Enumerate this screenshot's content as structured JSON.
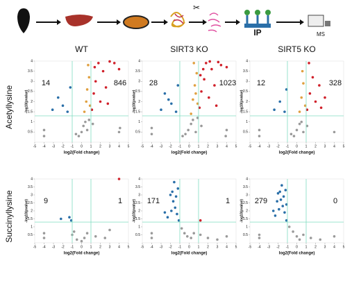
{
  "workflow": {
    "labels": [
      "IP",
      "MS"
    ]
  },
  "columns": [
    "WT",
    "SIRT3 KO",
    "SIRT5 KO"
  ],
  "rows": [
    "Acetyllysine",
    "Succinyllysine"
  ],
  "chart_data": [
    {
      "type": "scatter",
      "xlabel": "log2(Fold change)",
      "ylabel": "-log10(pvalue)",
      "xlim": [
        -5,
        5
      ],
      "xticks": [
        -5,
        -4,
        -3,
        -2,
        -1,
        0,
        1,
        2,
        3,
        4,
        5
      ],
      "ylim": [
        0,
        4
      ],
      "yticks": [
        0.5,
        1,
        1.5,
        2,
        2.5,
        3,
        3.5,
        4
      ],
      "thresholds": {
        "x": [
          -1,
          1
        ],
        "y": 1.3,
        "color": "#7fdcc0"
      },
      "annotations": [
        {
          "label": 14,
          "color": "#2e4fa0"
        },
        {
          "label": 846,
          "color": "#e0302a"
        }
      ],
      "series": [
        {
          "color": "#9a9a9a",
          "x": [
            -0.3,
            0,
            0.2,
            0.4,
            0.6,
            0.8,
            -0.6,
            1.2,
            -4,
            -4,
            4,
            4.1
          ],
          "y": [
            0.3,
            0.5,
            0.8,
            1.0,
            0.6,
            1.1,
            0.4,
            0.9,
            0.6,
            0.3,
            0.5,
            0.7
          ]
        },
        {
          "color": "#e0a040",
          "x": [
            0.3,
            0.5,
            0.6,
            0.8,
            0.9,
            0.7
          ],
          "y": [
            1.5,
            2.0,
            2.6,
            3.2,
            1.8,
            3.8
          ]
        },
        {
          "color": "#d0202a",
          "x": [
            1.1,
            1.3,
            1.5,
            1.8,
            2.0,
            2.3,
            2.6,
            3.0,
            3.5,
            4.0,
            1.4,
            2.8
          ],
          "y": [
            1.6,
            2.4,
            3.0,
            3.9,
            2.0,
            3.5,
            2.7,
            3.98,
            3.9,
            3.6,
            3.7,
            1.9
          ]
        },
        {
          "color": "#2a6fa8",
          "x": [
            -1.5,
            -2,
            -2.5,
            -1.2,
            -3.1
          ],
          "y": [
            1.5,
            1.8,
            2.2,
            2.7,
            1.6
          ]
        }
      ]
    },
    {
      "type": "scatter",
      "xlabel": "log2(Fold change)",
      "ylabel": "-log10(pvalue)",
      "xlim": [
        -5,
        5
      ],
      "xticks": [
        -5,
        -4,
        -3,
        -2,
        -1,
        0,
        1,
        2,
        3,
        4,
        5
      ],
      "ylim": [
        0,
        4
      ],
      "yticks": [
        0.5,
        1,
        1.5,
        2,
        2.5,
        3,
        3.5,
        4
      ],
      "thresholds": {
        "x": [
          -1,
          1
        ],
        "y": 1.3,
        "color": "#7fdcc0"
      },
      "annotations": [
        {
          "label": 28,
          "color": "#2e4fa0"
        },
        {
          "label": 1023,
          "color": "#e0302a"
        }
      ],
      "series": [
        {
          "color": "#9a9a9a",
          "x": [
            -0.4,
            -0.1,
            0.2,
            0.4,
            0.7,
            0.9,
            -0.7,
            1.3,
            -4,
            -4,
            4,
            3.9
          ],
          "y": [
            0.4,
            0.6,
            0.9,
            1.1,
            0.5,
            1.2,
            0.3,
            0.8,
            0.7,
            0.4,
            0.6,
            0.3
          ]
        },
        {
          "color": "#e0a040",
          "x": [
            0.2,
            0.4,
            0.6,
            0.8,
            0.9,
            0.5,
            0.7
          ],
          "y": [
            1.4,
            2.1,
            2.8,
            3.4,
            1.9,
            3.9,
            2.4
          ]
        },
        {
          "color": "#d0202a",
          "x": [
            1.1,
            1.3,
            1.6,
            1.8,
            2.1,
            2.4,
            2.7,
            3.1,
            3.4,
            4.0,
            1.5,
            2.9,
            2.2,
            1.2
          ],
          "y": [
            1.7,
            2.5,
            3.1,
            3.9,
            2.2,
            3.6,
            2.8,
            3.95,
            3.8,
            3.7,
            3.6,
            1.8,
            3.98,
            3.3
          ]
        },
        {
          "color": "#2a6fa8",
          "x": [
            -1.4,
            -1.9,
            -2.6,
            -1.2,
            -3.0,
            -2.2
          ],
          "y": [
            1.5,
            1.9,
            2.4,
            2.8,
            1.6,
            2.1
          ]
        }
      ]
    },
    {
      "type": "scatter",
      "xlabel": "log2(Fold change)",
      "ylabel": "-log10(pvalue)",
      "xlim": [
        -5,
        5
      ],
      "xticks": [
        -5,
        -4,
        -3,
        -2,
        -1,
        0,
        1,
        2,
        3,
        4,
        5
      ],
      "ylim": [
        0,
        4
      ],
      "yticks": [
        0.5,
        1,
        1.5,
        2,
        2.5,
        3,
        3.5,
        4
      ],
      "thresholds": {
        "x": [
          -1,
          1
        ],
        "y": 1.3,
        "color": "#7fdcc0"
      },
      "annotations": [
        {
          "label": 12,
          "color": "#2e4fa0"
        },
        {
          "label": 328,
          "color": "#e0302a"
        }
      ],
      "series": [
        {
          "color": "#9a9a9a",
          "x": [
            -0.3,
            0,
            0.3,
            0.5,
            0.7,
            -0.6,
            1.1,
            -4,
            -4,
            4
          ],
          "y": [
            0.3,
            0.6,
            0.9,
            1.0,
            0.5,
            0.4,
            0.8,
            0.6,
            0.3,
            0.5
          ]
        },
        {
          "color": "#e0a040",
          "x": [
            0.3,
            0.5,
            0.7,
            0.9,
            0.6
          ],
          "y": [
            1.5,
            2.2,
            2.9,
            1.8,
            3.5
          ]
        },
        {
          "color": "#d0202a",
          "x": [
            1.1,
            1.4,
            1.7,
            2.0,
            2.4,
            3.0,
            1.3,
            2.6
          ],
          "y": [
            1.6,
            2.4,
            3.2,
            2.0,
            2.8,
            2.2,
            3.9,
            1.7
          ]
        },
        {
          "color": "#2a6fa8",
          "x": [
            -1.3,
            -1.8,
            -1.1,
            -2.4
          ],
          "y": [
            1.5,
            2.0,
            2.6,
            1.6
          ]
        }
      ]
    },
    {
      "type": "scatter",
      "xlabel": "log2(Fold change)",
      "ylabel": "-log10(pvalue)",
      "xlim": [
        -5,
        5
      ],
      "xticks": [
        -5,
        -4,
        -3,
        -2,
        -1,
        0,
        1,
        2,
        3,
        4,
        5
      ],
      "ylim": [
        0,
        4
      ],
      "yticks": [
        0.5,
        1,
        1.5,
        2,
        2.5,
        3,
        3.5,
        4
      ],
      "thresholds": {
        "x": [
          -1,
          1
        ],
        "y": 1.3,
        "color": "#7fdcc0"
      },
      "annotations": [
        {
          "label": 9,
          "color": "#2e4fa0"
        },
        {
          "label": 1,
          "color": "#e0302a"
        }
      ],
      "series": [
        {
          "color": "#9a9a9a",
          "x": [
            -1,
            -0.5,
            0,
            0.3,
            0.6,
            -0.8,
            1.5,
            2.5,
            3,
            -4,
            -4
          ],
          "y": [
            0.5,
            0.2,
            0.1,
            0.3,
            0.6,
            0.7,
            0.4,
            0.3,
            0.8,
            0.6,
            0.3
          ]
        },
        {
          "color": "#2a6fa8",
          "x": [
            -1.3,
            -1.1,
            -2.2
          ],
          "y": [
            1.6,
            1.4,
            1.5
          ]
        },
        {
          "color": "#d0202a",
          "x": [
            4
          ],
          "y": [
            4
          ]
        }
      ]
    },
    {
      "type": "scatter",
      "xlabel": "log2(Fold change)",
      "ylabel": "-log10(pvalue)",
      "xlim": [
        -5,
        5
      ],
      "xticks": [
        -5,
        -4,
        -3,
        -2,
        -1,
        0,
        1,
        2,
        3,
        4,
        5
      ],
      "ylim": [
        0,
        4
      ],
      "yticks": [
        0.5,
        1,
        1.5,
        2,
        2.5,
        3,
        3.5,
        4
      ],
      "thresholds": {
        "x": [
          -1,
          1
        ],
        "y": 1.3,
        "color": "#7fdcc0"
      },
      "annotations": [
        {
          "label": 171,
          "color": "#2e4fa0"
        },
        {
          "label": 1,
          "color": "#e0302a"
        }
      ],
      "series": [
        {
          "color": "#9a9a9a",
          "x": [
            -0.8,
            -0.5,
            -0.2,
            0.2,
            0.5,
            1.2,
            2.0,
            3.0,
            -4,
            -4,
            4
          ],
          "y": [
            0.9,
            0.6,
            0.4,
            0.3,
            0.6,
            0.5,
            0.3,
            0.2,
            0.6,
            0.3,
            0.4
          ]
        },
        {
          "color": "#2a6fa8",
          "x": [
            -1.1,
            -1.3,
            -1.5,
            -1.7,
            -2.0,
            -2.3,
            -1.2,
            -1.6,
            -1.9,
            -1.4,
            -2.6,
            -1.8
          ],
          "y": [
            1.4,
            1.8,
            2.2,
            2.6,
            3.0,
            1.6,
            3.4,
            3.8,
            2.0,
            2.9,
            1.9,
            3.2
          ]
        },
        {
          "color": "#d0202a",
          "x": [
            1.2
          ],
          "y": [
            1.4
          ]
        }
      ]
    },
    {
      "type": "scatter",
      "xlabel": "log2(Fold change)",
      "ylabel": "-log10(pvalue)",
      "xlim": [
        -5,
        5
      ],
      "xticks": [
        -5,
        -4,
        -3,
        -2,
        -1,
        0,
        1,
        2,
        3,
        4,
        5
      ],
      "ylim": [
        0,
        4
      ],
      "yticks": [
        0.5,
        1,
        1.5,
        2,
        2.5,
        3,
        3.5,
        4
      ],
      "thresholds": {
        "x": [
          -1,
          1
        ],
        "y": 1.3,
        "color": "#7fdcc0"
      },
      "annotations": [
        {
          "label": 279,
          "color": "#2e4fa0"
        },
        {
          "label": 0,
          "color": "#e0302a"
        }
      ],
      "series": [
        {
          "color": "#9a9a9a",
          "x": [
            -0.8,
            -0.4,
            0,
            0.3,
            0.7,
            1.5,
            2.5,
            -4,
            -4,
            4
          ],
          "y": [
            1.0,
            0.7,
            0.4,
            0.2,
            0.5,
            0.3,
            0.2,
            0.5,
            0.3,
            0.4
          ]
        },
        {
          "color": "#2a6fa8",
          "x": [
            -1.1,
            -1.3,
            -1.5,
            -1.7,
            -2.0,
            -2.3,
            -1.2,
            -1.6,
            -1.9,
            -1.4,
            -2.5,
            -1.8,
            -1.1,
            -2.1
          ],
          "y": [
            1.4,
            1.9,
            2.3,
            2.7,
            3.1,
            1.7,
            3.3,
            3.6,
            2.1,
            2.9,
            2.0,
            3.2,
            2.4,
            2.6
          ]
        }
      ]
    }
  ]
}
